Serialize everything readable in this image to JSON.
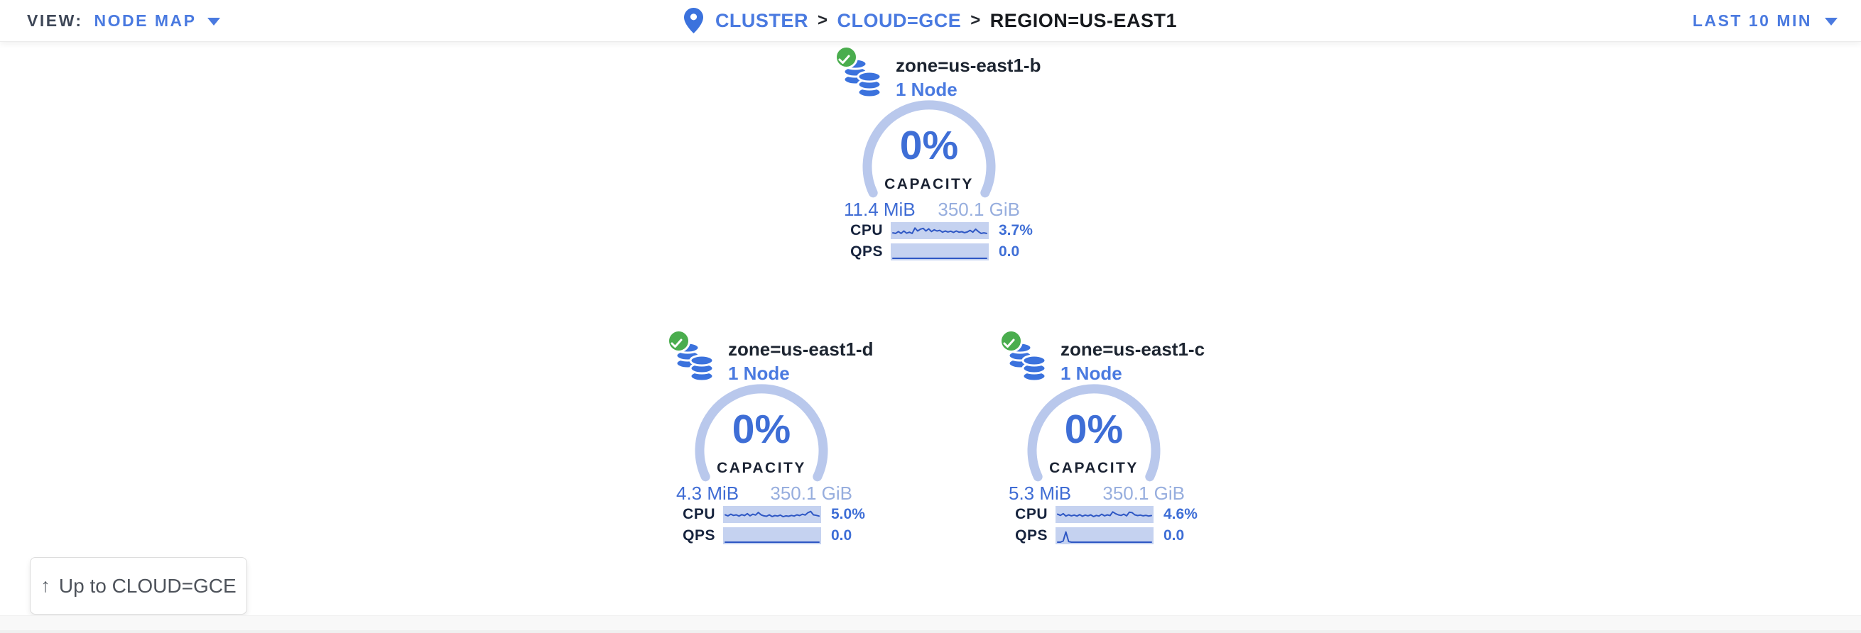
{
  "topbar": {
    "view_label": "VIEW:",
    "view_value": "NODE MAP",
    "breadcrumb": {
      "separator": ">",
      "items": [
        {
          "label": "CLUSTER"
        },
        {
          "label": "CLOUD=GCE"
        },
        {
          "label": "REGION=US-EAST1"
        }
      ]
    },
    "time_range": "LAST 10 MIN"
  },
  "zones": [
    {
      "name": "zone=us-east1-b",
      "nodes": "1 Node",
      "capacity_pct": "0%",
      "capacity_label": "CAPACITY",
      "used": "11.4 MiB",
      "total": "350.1 GiB",
      "cpu_label": "CPU",
      "cpu_value": "3.7%",
      "qps_label": "QPS",
      "qps_value": "0.0",
      "cpu_spark": [
        0.35,
        0.3,
        0.45,
        0.3,
        0.5,
        0.32,
        0.4,
        0.3,
        0.75,
        0.5,
        0.65,
        0.72,
        0.5,
        0.68,
        0.45,
        0.6,
        0.5,
        0.55,
        0.4,
        0.5,
        0.42,
        0.48,
        0.38,
        0.5,
        0.4,
        0.44,
        0.36,
        0.42,
        0.55,
        0.4,
        0.65,
        0.45,
        0.3,
        0.35,
        0.3
      ],
      "qps_spark": [
        0,
        0,
        0,
        0,
        0,
        0,
        0,
        0,
        0,
        0,
        0,
        0,
        0,
        0,
        0,
        0,
        0,
        0,
        0,
        0,
        0,
        0,
        0,
        0,
        0,
        0,
        0,
        0,
        0,
        0,
        0,
        0,
        0,
        0,
        0
      ]
    },
    {
      "name": "zone=us-east1-d",
      "nodes": "1 Node",
      "capacity_pct": "0%",
      "capacity_label": "CAPACITY",
      "used": "4.3 MiB",
      "total": "350.1 GiB",
      "cpu_label": "CPU",
      "cpu_value": "5.0%",
      "qps_label": "QPS",
      "qps_value": "0.0",
      "cpu_spark": [
        0.5,
        0.42,
        0.55,
        0.45,
        0.5,
        0.4,
        0.52,
        0.44,
        0.6,
        0.42,
        0.55,
        0.48,
        0.7,
        0.5,
        0.42,
        0.38,
        0.5,
        0.36,
        0.44,
        0.4,
        0.48,
        0.35,
        0.42,
        0.38,
        0.45,
        0.4,
        0.5,
        0.44,
        0.55,
        0.48,
        0.68,
        0.78,
        0.5,
        0.46,
        0.4
      ],
      "qps_spark": [
        0,
        0,
        0,
        0,
        0,
        0,
        0,
        0,
        0,
        0,
        0,
        0,
        0,
        0,
        0,
        0,
        0,
        0,
        0,
        0,
        0,
        0,
        0,
        0,
        0,
        0,
        0,
        0,
        0,
        0,
        0,
        0,
        0,
        0,
        0
      ]
    },
    {
      "name": "zone=us-east1-c",
      "nodes": "1 Node",
      "capacity_pct": "0%",
      "capacity_label": "CAPACITY",
      "used": "5.3 MiB",
      "total": "350.1 GiB",
      "cpu_label": "CPU",
      "cpu_value": "4.6%",
      "qps_label": "QPS",
      "qps_value": "0.0",
      "cpu_spark": [
        0.55,
        0.45,
        0.6,
        0.4,
        0.5,
        0.42,
        0.48,
        0.4,
        0.52,
        0.38,
        0.48,
        0.42,
        0.5,
        0.36,
        0.45,
        0.4,
        0.55,
        0.42,
        0.5,
        0.44,
        0.75,
        0.6,
        0.5,
        0.45,
        0.55,
        0.42,
        0.72,
        0.68,
        0.5,
        0.44,
        0.48,
        0.42,
        0.46,
        0.4,
        0.44
      ],
      "qps_spark": [
        0,
        0,
        0.1,
        0.85,
        0.05,
        0,
        0,
        0,
        0,
        0,
        0,
        0,
        0,
        0,
        0,
        0,
        0,
        0,
        0,
        0,
        0,
        0,
        0,
        0,
        0,
        0,
        0,
        0,
        0,
        0,
        0,
        0,
        0,
        0,
        0
      ]
    }
  ],
  "up_button": {
    "label": "Up to CLOUD=GCE"
  },
  "colors": {
    "accent_blue": "#3e6ed6",
    "link_blue": "#4a7ae0",
    "arc_light_blue": "#b9c8ec",
    "spark_background": "#c5d2f0",
    "spark_line": "#2e57c4",
    "total_capacity_blue": "#97aede",
    "healthy_green": "#4aad4e",
    "dark_text": "#1c2430"
  }
}
